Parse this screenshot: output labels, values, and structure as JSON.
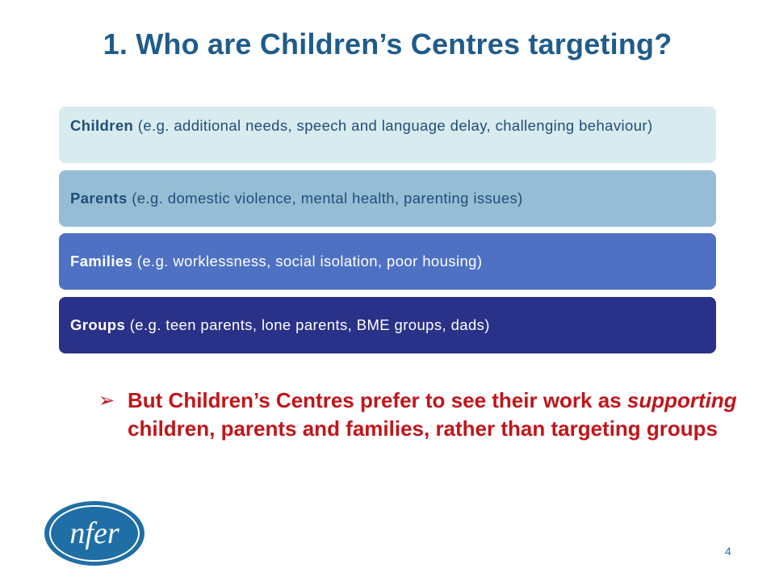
{
  "slide": {
    "title": "1. Who are Children’s Centres targeting?",
    "bars": [
      {
        "label": "Children",
        "detail": " (e.g. additional needs, speech and language delay, challenging behaviour)"
      },
      {
        "label": "Parents",
        "detail": " (e.g. domestic violence, mental health, parenting issues)"
      },
      {
        "label": "Families",
        "detail": " (e.g. worklessness, social isolation, poor housing)"
      },
      {
        "label": "Groups",
        "detail": " (e.g. teen parents, lone parents, BME groups, dads)"
      }
    ],
    "note": {
      "arrow": "➢",
      "part1": "But Children’s Centres prefer to see their work as ",
      "emphasis": "supporting",
      "part2": " children, parents and families, rather than targeting groups"
    },
    "logo_text": "nfer",
    "page_number": "4"
  },
  "colors": {
    "title": "#1f5c8c",
    "bar1": "#d8ebee",
    "bar2": "#95bdd5",
    "bar3": "#4e71c4",
    "bar4": "#2a3188",
    "note": "#c0161a",
    "logo": "#1f6fa6"
  }
}
